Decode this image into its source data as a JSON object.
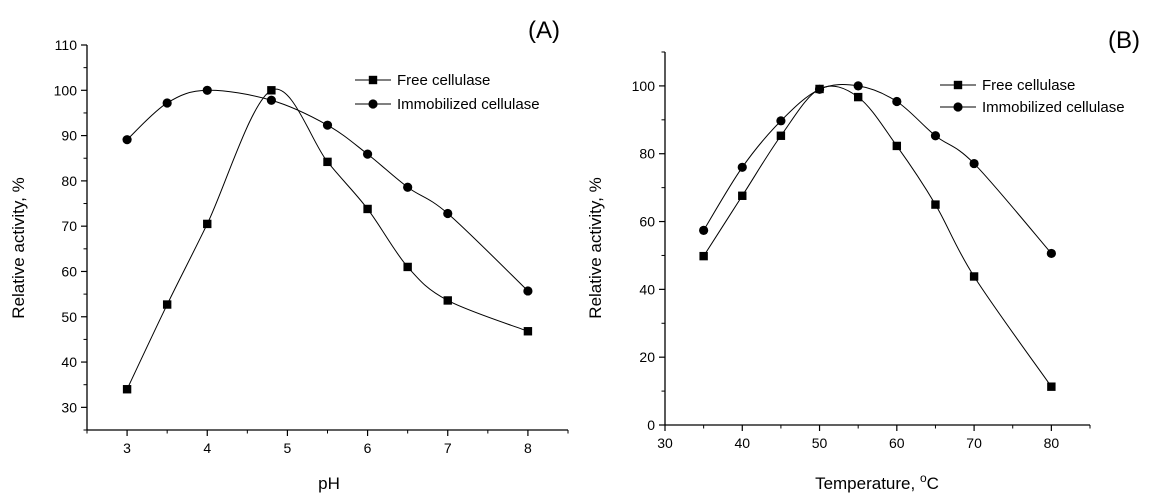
{
  "chart_data": [
    {
      "type": "line",
      "panel_label": "(A)",
      "xlabel": "pH",
      "ylabel": "Relative activity, %",
      "xlim": [
        2.5,
        8.5
      ],
      "ylim": [
        25,
        110
      ],
      "xticks": [
        3,
        4,
        5,
        6,
        7,
        8
      ],
      "yticks": [
        30,
        40,
        50,
        60,
        70,
        80,
        90,
        100,
        110
      ],
      "legend_position": "top-right",
      "series": [
        {
          "name": "Free cellulase",
          "marker": "square",
          "x": [
            3,
            3.5,
            4,
            4.8,
            5.5,
            6,
            6.5,
            7,
            8
          ],
          "y": [
            34,
            52.7,
            70.5,
            100,
            84.2,
            73.8,
            61,
            53.6,
            46.8
          ]
        },
        {
          "name": "Immobilized cellulase",
          "marker": "circle",
          "x": [
            3,
            3.5,
            4,
            4.8,
            5.5,
            6,
            6.5,
            7,
            8
          ],
          "y": [
            89.1,
            97.2,
            100,
            97.8,
            92.3,
            85.9,
            78.6,
            72.8,
            55.7
          ]
        }
      ]
    },
    {
      "type": "line",
      "panel_label": "(B)",
      "xlabel": "Temperature, °C",
      "xlabel_text": "Temperature, ",
      "xlabel_sup": "o",
      "xlabel_unit": "C",
      "ylabel": "Relative activity, %",
      "xlim": [
        30,
        85
      ],
      "ylim": [
        0,
        110
      ],
      "xticks": [
        30,
        40,
        50,
        60,
        70,
        80
      ],
      "yticks": [
        0,
        20,
        40,
        60,
        80,
        100
      ],
      "legend_position": "top-right",
      "series": [
        {
          "name": "Free cellulase",
          "marker": "square",
          "x": [
            35,
            40,
            45,
            50,
            55,
            60,
            65,
            70,
            80
          ],
          "y": [
            49.8,
            67.6,
            85.3,
            99.1,
            96.7,
            82.3,
            65,
            43.8,
            11.3
          ]
        },
        {
          "name": "Immobilized cellulase",
          "marker": "circle",
          "x": [
            35,
            40,
            45,
            50,
            55,
            60,
            65,
            70,
            80
          ],
          "y": [
            57.4,
            76,
            89.7,
            99,
            100,
            95.4,
            85.3,
            77.1,
            50.6
          ]
        }
      ]
    }
  ]
}
